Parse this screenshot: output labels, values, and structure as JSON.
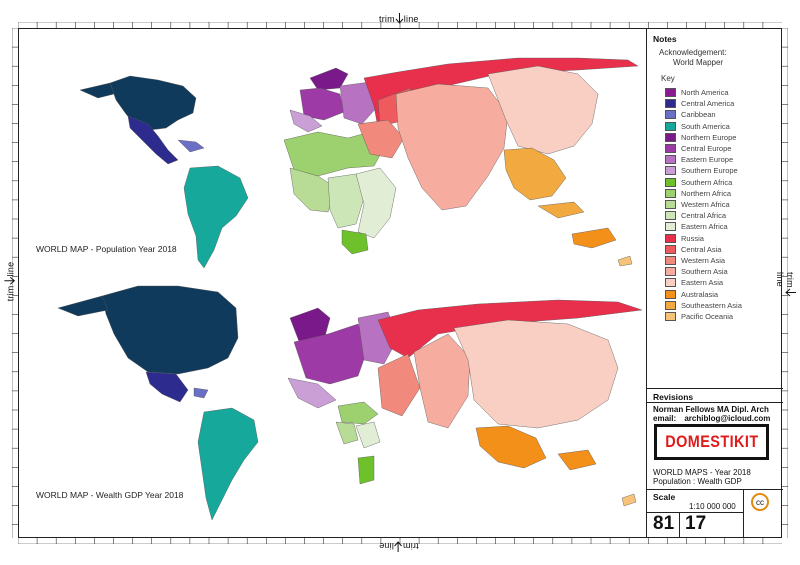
{
  "trim": {
    "label": "trim",
    "line": "line"
  },
  "maps": {
    "top_caption": "WORLD MAP  - Population Year 2018",
    "bottom_caption": "WORLD MAP  - Wealth GDP Year 2018"
  },
  "notes": {
    "title": "Notes",
    "ack_line1": "Acknowledgement:",
    "ack_line2": "World Mapper",
    "key_title": "Key"
  },
  "key": [
    {
      "label": "North America",
      "color": "#8b1c8f"
    },
    {
      "label": "Central America",
      "color": "#2e2b8e"
    },
    {
      "label": "Caribbean",
      "color": "#6b6fc6"
    },
    {
      "label": "South America",
      "color": "#16a89b"
    },
    {
      "label": "Northern Europe",
      "color": "#7a1a8a"
    },
    {
      "label": "Central Europe",
      "color": "#9d3aa6"
    },
    {
      "label": "Eastern Europe",
      "color": "#b772c2"
    },
    {
      "label": "Southern Europe",
      "color": "#c99fd6"
    },
    {
      "label": "Southern Africa",
      "color": "#6ec12a"
    },
    {
      "label": "Northern Africa",
      "color": "#9dd06e"
    },
    {
      "label": "Western Africa",
      "color": "#b8db95"
    },
    {
      "label": "Central Africa",
      "color": "#cde6b7"
    },
    {
      "label": "Eastern Africa",
      "color": "#e1eed5"
    },
    {
      "label": "Russia",
      "color": "#e8304c"
    },
    {
      "label": "Central Asia",
      "color": "#ee5a5e"
    },
    {
      "label": "Western Asia",
      "color": "#f18a7c"
    },
    {
      "label": "Southern Asia",
      "color": "#f6ada0"
    },
    {
      "label": "Eastern Asia",
      "color": "#f9cfc4"
    },
    {
      "label": "Australasia",
      "color": "#f3901a"
    },
    {
      "label": "Southeastern Asia",
      "color": "#f2a93f"
    },
    {
      "label": "Pacific Oceania",
      "color": "#f7c27a"
    }
  ],
  "revisions": {
    "title": "Revisions",
    "author": "Norman Fellows  MA Dipl. Arch",
    "email_label": "email:",
    "email": "archiblog@icloud.com"
  },
  "logo": "DOMESTIKIT",
  "project": {
    "line1": "WORLD MAPS  - Year 2018",
    "line2": "Population  :  Wealth GDP"
  },
  "scale": {
    "title": "Scale",
    "value": "1:10 000 000"
  },
  "sheet": {
    "num1": "81",
    "num2": "17"
  },
  "license_icon": "cc",
  "colors": {
    "north_america_dark": "#0f3a5c",
    "border": "#222222"
  }
}
